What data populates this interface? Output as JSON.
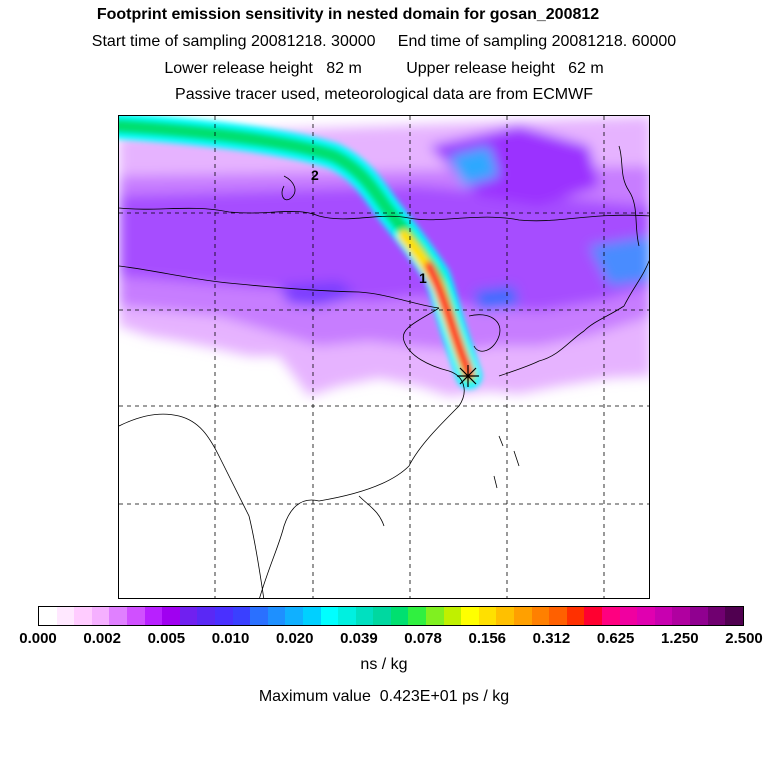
{
  "titles": {
    "line1": "Footprint emission sensitivity in nested domain for gosan_200812",
    "line2": "Start time of sampling 20081218. 30000     End time of sampling 20081218. 60000",
    "line3": "Lower release height   82 m          Upper release height   62 m",
    "line4": "Passive tracer used, meteorological data are from ECMWF"
  },
  "map": {
    "plume_labels": [
      "2",
      "1"
    ],
    "receptor_marker": "star"
  },
  "colorbar": {
    "colors": [
      "#ffffff",
      "#ffe8ff",
      "#ffccff",
      "#f5b0ff",
      "#e080ff",
      "#d050ff",
      "#b820ff",
      "#a000f0",
      "#7020f0",
      "#5a28f5",
      "#4a30ff",
      "#3a40ff",
      "#2a70ff",
      "#1e90ff",
      "#10b0ff",
      "#00d0ff",
      "#00ffff",
      "#00f0e0",
      "#00e0c0",
      "#00d8a0",
      "#00e070",
      "#30f040",
      "#80f020",
      "#c0f000",
      "#ffff00",
      "#ffe000",
      "#ffc000",
      "#ffa000",
      "#ff8000",
      "#ff6000",
      "#ff3000",
      "#ff0030",
      "#ff0080",
      "#f000a0",
      "#e000b0",
      "#c800b0",
      "#b000a0",
      "#900090",
      "#700070",
      "#500050"
    ],
    "tick_labels": [
      "0.000",
      "0.002",
      "0.005",
      "0.010",
      "0.020",
      "0.039",
      "0.078",
      "0.156",
      "0.312",
      "0.625",
      "1.250",
      "2.500"
    ],
    "unit": "ns / kg",
    "max_label": "Maximum value  0.423E+01 ps / kg"
  }
}
